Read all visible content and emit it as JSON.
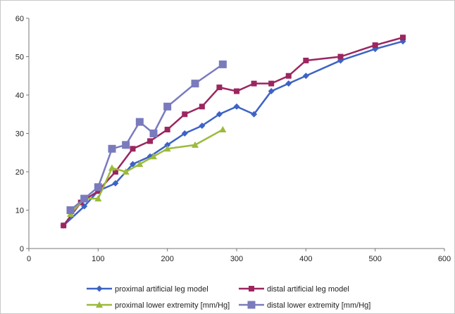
{
  "chart_data": {
    "type": "line",
    "title": "",
    "xlabel": "",
    "ylabel": "",
    "xlim": [
      0,
      600
    ],
    "ylim": [
      0,
      60
    ],
    "xticks": [
      0,
      100,
      200,
      300,
      400,
      500,
      600
    ],
    "yticks": [
      0,
      10,
      20,
      30,
      40,
      50,
      60
    ],
    "grid": false,
    "legend_position": "bottom",
    "series": [
      {
        "name": "proximal artificial leg model",
        "color": "#3d63c4",
        "marker": "diamond",
        "x": [
          50,
          80,
          100,
          125,
          150,
          175,
          200,
          225,
          250,
          275,
          300,
          325,
          350,
          375,
          400,
          450,
          500,
          540
        ],
        "y": [
          6,
          11,
          15,
          17,
          22,
          24,
          27,
          30,
          32,
          35,
          37,
          35,
          41,
          43,
          45,
          49,
          52,
          54
        ]
      },
      {
        "name": "distal artificial leg model",
        "color": "#9b2660",
        "marker": "square",
        "x": [
          50,
          75,
          100,
          125,
          150,
          175,
          200,
          225,
          250,
          275,
          300,
          325,
          350,
          375,
          400,
          450,
          500,
          540
        ],
        "y": [
          6,
          12,
          15,
          20,
          26,
          28,
          31,
          35,
          37,
          42,
          41,
          43,
          43,
          45,
          49,
          50,
          53,
          55
        ]
      },
      {
        "name": "proximal lower extremity [mm/Hg]",
        "color": "#9bbb3b",
        "marker": "triangle",
        "x": [
          60,
          80,
          100,
          120,
          140,
          160,
          180,
          200,
          240,
          280
        ],
        "y": [
          9,
          13,
          13,
          21,
          20,
          22,
          24,
          26,
          27,
          31
        ]
      },
      {
        "name": "distal lower extremity [mm/Hg]",
        "color": "#7a7bbd",
        "marker": "bigsquare",
        "x": [
          60,
          80,
          100,
          120,
          140,
          160,
          180,
          200,
          240,
          280
        ],
        "y": [
          10,
          13,
          16,
          26,
          27,
          33,
          30,
          37,
          43,
          48
        ]
      }
    ]
  }
}
